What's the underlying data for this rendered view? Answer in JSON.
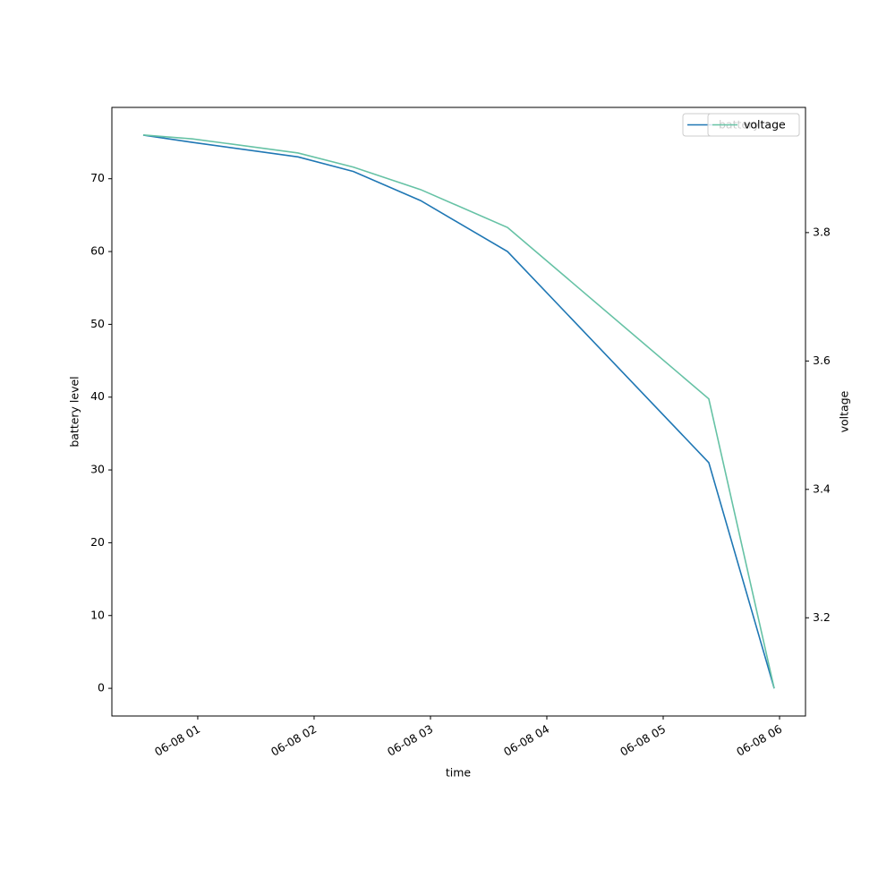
{
  "chart_data": {
    "type": "line",
    "x_label": "time",
    "y_label": "battery level",
    "y2_label": "voltage",
    "x": [
      0.531,
      0.954,
      1.862,
      2.338,
      2.915,
      3.662,
      5.392,
      5.954
    ],
    "xlim": [
      0.262,
      6.223
    ],
    "xticks": [
      {
        "value": 1,
        "label": "06-08 01"
      },
      {
        "value": 2,
        "label": "06-08 02"
      },
      {
        "value": 3,
        "label": "06-08 03"
      },
      {
        "value": 4,
        "label": "06-08 04"
      },
      {
        "value": 5,
        "label": "06-08 05"
      },
      {
        "value": 6,
        "label": "06-08 06"
      }
    ],
    "ylim": [
      -3.8,
      79.8
    ],
    "yticks": [
      0,
      10,
      20,
      30,
      40,
      50,
      60,
      70
    ],
    "y2lim": [
      3.047,
      3.995
    ],
    "y2ticks": [
      3.2,
      3.4,
      3.6,
      3.8
    ],
    "legend": "upper right",
    "series": [
      {
        "name": "battery",
        "color": "#1f77b4",
        "values": [
          76,
          75,
          73,
          71,
          67,
          60,
          31,
          0
        ]
      },
      {
        "name": "voltage",
        "color": "#66c2a5",
        "axis": "y2",
        "values": [
          3.952,
          3.946,
          3.924,
          3.902,
          3.867,
          3.808,
          3.541,
          3.09
        ]
      }
    ]
  }
}
